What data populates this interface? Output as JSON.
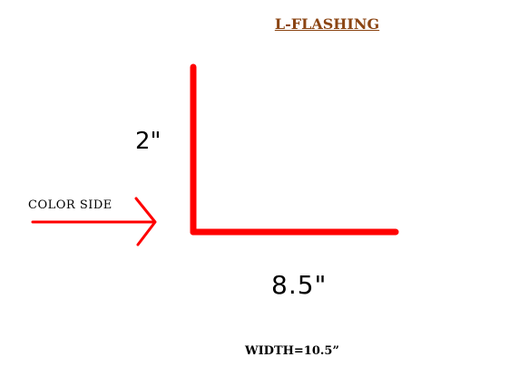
{
  "diagram": {
    "title": "L-FLASHING",
    "vertical_dimension": "2\"",
    "horizontal_dimension": "8.5\"",
    "side_label": "COLOR SIDE",
    "width_label": "WIDTH=10.5”"
  },
  "colors": {
    "title": "#8b4513",
    "profile": "#ff0000",
    "arrow": "#ff0000",
    "text": "#000000",
    "background": "#ffffff"
  }
}
